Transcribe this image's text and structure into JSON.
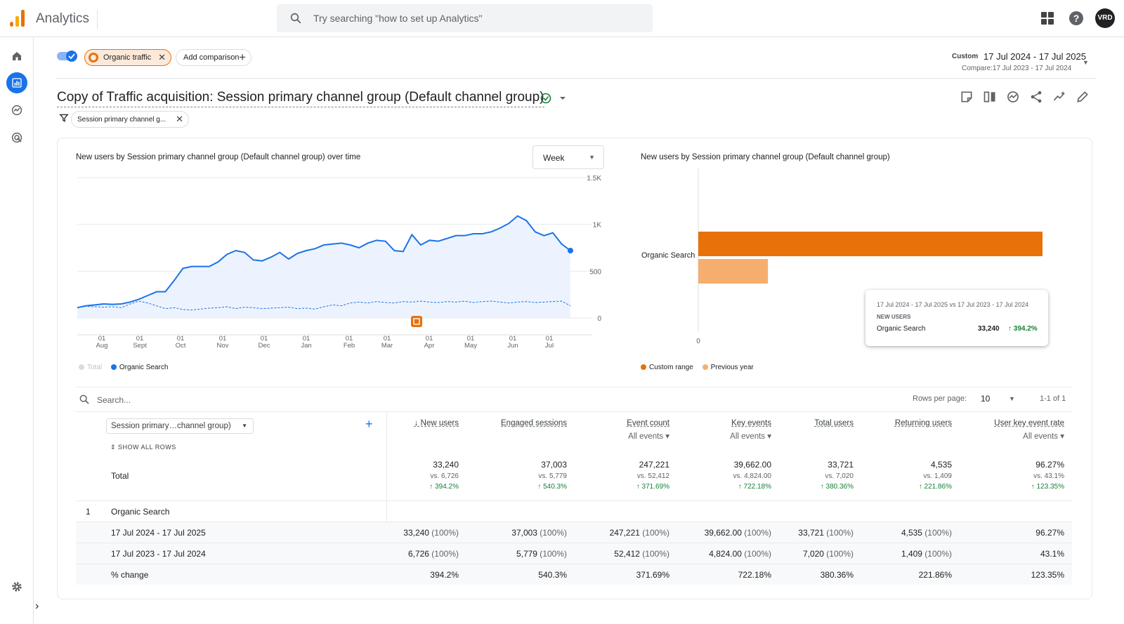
{
  "app": {
    "title": "Analytics",
    "search_placeholder": "Try searching \"how to set up Analytics\"",
    "avatar": "VRD"
  },
  "comparison": {
    "chip_label": "Organic traffic",
    "add_label": "Add comparison"
  },
  "date": {
    "custom_label": "Custom",
    "range": "17 Jul 2024 - 17 Jul 2025",
    "compare": "Compare:17 Jul 2023 - 17 Jul 2024"
  },
  "report": {
    "title": "Copy of Traffic acquisition: Session primary channel group (Default channel group)",
    "filter_chip": "Session primary channel g..."
  },
  "line_chart": {
    "title": "New users by Session primary channel group (Default channel group) over time",
    "granularity": "Week",
    "legend": [
      {
        "label": "Total",
        "color": "#dadce0"
      },
      {
        "label": "Organic Search",
        "color": "#1a73e8"
      }
    ]
  },
  "bar_chart": {
    "title": "New users by Session primary channel group (Default channel group)",
    "category": "Organic Search",
    "zero_label": "0",
    "legend": [
      {
        "label": "Custom range",
        "color": "#e8710a"
      },
      {
        "label": "Previous year",
        "color": "#f6ae6f"
      }
    ],
    "tooltip": {
      "range": "17 Jul 2024 - 17 Jul 2025 vs 17 Jul 2023 - 17 Jul 2024",
      "metric": "NEW USERS",
      "label": "Organic Search",
      "value": "33,240",
      "change": "↑ 394.2%"
    }
  },
  "chart_data": [
    {
      "type": "line",
      "title": "New users by Session primary channel group (Default channel group) over time",
      "y_ticks": [
        "1.5K",
        "1K",
        "500",
        "0"
      ],
      "ylim": [
        0,
        1500
      ],
      "x_ticks": [
        {
          "day": "01",
          "month": "Aug"
        },
        {
          "day": "01",
          "month": "Sept"
        },
        {
          "day": "01",
          "month": "Oct"
        },
        {
          "day": "01",
          "month": "Nov"
        },
        {
          "day": "01",
          "month": "Dec"
        },
        {
          "day": "01",
          "month": "Jan"
        },
        {
          "day": "01",
          "month": "Feb"
        },
        {
          "day": "01",
          "month": "Mar"
        },
        {
          "day": "01",
          "month": "Apr"
        },
        {
          "day": "01",
          "month": "May"
        },
        {
          "day": "01",
          "month": "Jun"
        },
        {
          "day": "01",
          "month": "Jul"
        }
      ],
      "series": [
        {
          "name": "Organic Search",
          "style": "solid",
          "color": "#1a73e8",
          "values": [
            110,
            130,
            140,
            150,
            145,
            150,
            170,
            200,
            240,
            280,
            280,
            400,
            530,
            550,
            550,
            550,
            600,
            680,
            720,
            700,
            620,
            610,
            650,
            700,
            630,
            690,
            720,
            740,
            780,
            790,
            800,
            780,
            750,
            800,
            830,
            820,
            720,
            710,
            890,
            780,
            830,
            820,
            850,
            880,
            880,
            900,
            900,
            920,
            960,
            1010,
            1090,
            1040,
            920,
            880,
            910,
            790,
            720
          ]
        },
        {
          "name": "Organic Search",
          "style": "dashed",
          "color": "#1a73e8",
          "values": [
            110,
            125,
            120,
            115,
            120,
            110,
            150,
            180,
            160,
            130,
            100,
            110,
            90,
            85,
            95,
            105,
            110,
            120,
            100,
            115,
            110,
            100,
            105,
            110,
            115,
            100,
            105,
            95,
            120,
            140,
            130,
            160,
            170,
            160,
            175,
            165,
            160,
            175,
            170,
            180,
            170,
            165,
            175,
            170,
            180,
            165,
            175,
            180,
            170,
            160,
            170,
            175,
            165,
            170,
            175,
            180,
            130
          ]
        }
      ]
    },
    {
      "type": "bar",
      "title": "New users by Session primary channel group (Default channel group)",
      "categories": [
        "Organic Search"
      ],
      "series": [
        {
          "name": "Custom range",
          "values": [
            33240
          ]
        },
        {
          "name": "Previous year",
          "values": [
            6726
          ]
        }
      ]
    }
  ],
  "table": {
    "search_placeholder": "Search...",
    "rows_per_page_label": "Rows per page:",
    "rows_per_page": "10",
    "page_info": "1-1 of 1",
    "dimension": "Session primary…channel group)",
    "show_all": "SHOW ALL ROWS",
    "total_label": "Total",
    "columns": [
      {
        "label": "New users",
        "sub": "",
        "total": "33,240",
        "vs": "vs. 6,726",
        "change": "↑ 394.2%",
        "sorted": true
      },
      {
        "label": "Engaged sessions",
        "sub": "",
        "total": "37,003",
        "vs": "vs. 5,779",
        "change": "↑ 540.3%"
      },
      {
        "label": "Event count",
        "sub": "All events",
        "total": "247,221",
        "vs": "vs. 52,412",
        "change": "↑ 371.69%"
      },
      {
        "label": "Key events",
        "sub": "All events",
        "total": "39,662.00",
        "vs": "vs. 4,824.00",
        "change": "↑ 722.18%"
      },
      {
        "label": "Total users",
        "sub": "",
        "total": "33,721",
        "vs": "vs. 7,020",
        "change": "↑ 380.36%"
      },
      {
        "label": "Returning users",
        "sub": "",
        "total": "4,535",
        "vs": "vs. 1,409",
        "change": "↑ 221.86%"
      },
      {
        "label": "User key event rate",
        "sub": "All events",
        "total": "96.27%",
        "vs": "vs. 43.1%",
        "change": "↑ 123.35%"
      }
    ],
    "group": {
      "index": "1",
      "label": "Organic Search"
    },
    "rows": [
      {
        "label": "17 Jul 2024 - 17 Jul 2025",
        "cells": [
          [
            "33,240",
            "(100%)"
          ],
          [
            "37,003",
            "(100%)"
          ],
          [
            "247,221",
            "(100%)"
          ],
          [
            "39,662.00",
            "(100%)"
          ],
          [
            "33,721",
            "(100%)"
          ],
          [
            "4,535",
            "(100%)"
          ],
          [
            "96.27%",
            ""
          ]
        ]
      },
      {
        "label": "17 Jul 2023 - 17 Jul 2024",
        "cells": [
          [
            "6,726",
            "(100%)"
          ],
          [
            "5,779",
            "(100%)"
          ],
          [
            "52,412",
            "(100%)"
          ],
          [
            "4,824.00",
            "(100%)"
          ],
          [
            "7,020",
            "(100%)"
          ],
          [
            "1,409",
            "(100%)"
          ],
          [
            "43.1%",
            ""
          ]
        ]
      },
      {
        "label": "% change",
        "cells": [
          [
            "394.2%",
            ""
          ],
          [
            "540.3%",
            ""
          ],
          [
            "371.69%",
            ""
          ],
          [
            "722.18%",
            ""
          ],
          [
            "380.36%",
            ""
          ],
          [
            "221.86%",
            ""
          ],
          [
            "123.35%",
            ""
          ]
        ]
      }
    ]
  }
}
